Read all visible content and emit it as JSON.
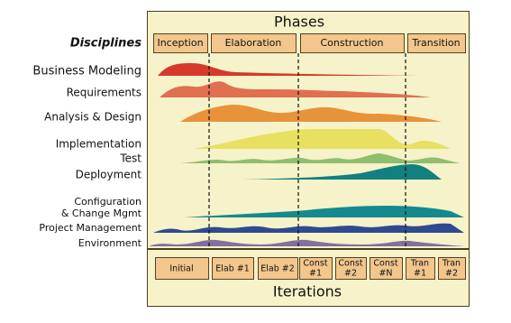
{
  "header": {
    "title": "Phases",
    "disciplines_heading": "Disciplines"
  },
  "phases": [
    "Inception",
    "Elaboration",
    "Construction",
    "Transition"
  ],
  "disciplines": [
    "Business Modeling",
    "Requirements",
    "Analysis & Design",
    "Implementation",
    "Test",
    "Deployment",
    "Configuration",
    "& Change Mgmt",
    "Project Management",
    "Environment"
  ],
  "iterations": [
    [
      "Initial"
    ],
    [
      "Elab #1"
    ],
    [
      "Elab #2"
    ],
    [
      "Const",
      "#1"
    ],
    [
      "Const",
      "#2"
    ],
    [
      "Const",
      "#N"
    ],
    [
      "Tran",
      "#1"
    ],
    [
      "Tran",
      "#2"
    ]
  ],
  "footer": {
    "title": "Iterations"
  }
}
